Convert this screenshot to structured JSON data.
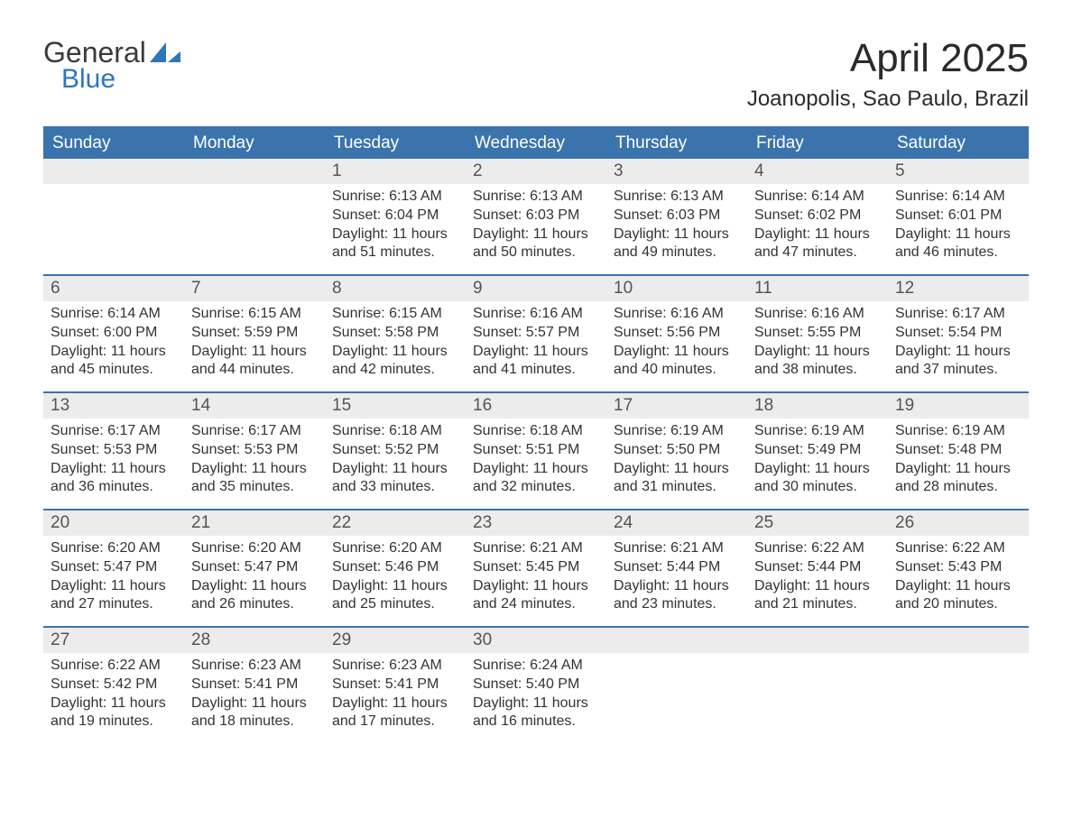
{
  "logo": {
    "text_general": "General",
    "text_blue": "Blue",
    "blue_color": "#2f76bb",
    "gray_color": "#3a3a3a"
  },
  "header": {
    "title": "April 2025",
    "location": "Joanopolis, Sao Paulo, Brazil"
  },
  "colors": {
    "header_bg": "#3b74ad",
    "row_divider": "#3b74ad",
    "daynum_bg": "#ececec",
    "text": "#333333"
  },
  "weekdays": [
    "Sunday",
    "Monday",
    "Tuesday",
    "Wednesday",
    "Thursday",
    "Friday",
    "Saturday"
  ],
  "weeks": [
    [
      {
        "num": "",
        "sunrise": "",
        "sunset": "",
        "daylight": ""
      },
      {
        "num": "",
        "sunrise": "",
        "sunset": "",
        "daylight": ""
      },
      {
        "num": "1",
        "sunrise": "Sunrise: 6:13 AM",
        "sunset": "Sunset: 6:04 PM",
        "daylight": "Daylight: 11 hours and 51 minutes."
      },
      {
        "num": "2",
        "sunrise": "Sunrise: 6:13 AM",
        "sunset": "Sunset: 6:03 PM",
        "daylight": "Daylight: 11 hours and 50 minutes."
      },
      {
        "num": "3",
        "sunrise": "Sunrise: 6:13 AM",
        "sunset": "Sunset: 6:03 PM",
        "daylight": "Daylight: 11 hours and 49 minutes."
      },
      {
        "num": "4",
        "sunrise": "Sunrise: 6:14 AM",
        "sunset": "Sunset: 6:02 PM",
        "daylight": "Daylight: 11 hours and 47 minutes."
      },
      {
        "num": "5",
        "sunrise": "Sunrise: 6:14 AM",
        "sunset": "Sunset: 6:01 PM",
        "daylight": "Daylight: 11 hours and 46 minutes."
      }
    ],
    [
      {
        "num": "6",
        "sunrise": "Sunrise: 6:14 AM",
        "sunset": "Sunset: 6:00 PM",
        "daylight": "Daylight: 11 hours and 45 minutes."
      },
      {
        "num": "7",
        "sunrise": "Sunrise: 6:15 AM",
        "sunset": "Sunset: 5:59 PM",
        "daylight": "Daylight: 11 hours and 44 minutes."
      },
      {
        "num": "8",
        "sunrise": "Sunrise: 6:15 AM",
        "sunset": "Sunset: 5:58 PM",
        "daylight": "Daylight: 11 hours and 42 minutes."
      },
      {
        "num": "9",
        "sunrise": "Sunrise: 6:16 AM",
        "sunset": "Sunset: 5:57 PM",
        "daylight": "Daylight: 11 hours and 41 minutes."
      },
      {
        "num": "10",
        "sunrise": "Sunrise: 6:16 AM",
        "sunset": "Sunset: 5:56 PM",
        "daylight": "Daylight: 11 hours and 40 minutes."
      },
      {
        "num": "11",
        "sunrise": "Sunrise: 6:16 AM",
        "sunset": "Sunset: 5:55 PM",
        "daylight": "Daylight: 11 hours and 38 minutes."
      },
      {
        "num": "12",
        "sunrise": "Sunrise: 6:17 AM",
        "sunset": "Sunset: 5:54 PM",
        "daylight": "Daylight: 11 hours and 37 minutes."
      }
    ],
    [
      {
        "num": "13",
        "sunrise": "Sunrise: 6:17 AM",
        "sunset": "Sunset: 5:53 PM",
        "daylight": "Daylight: 11 hours and 36 minutes."
      },
      {
        "num": "14",
        "sunrise": "Sunrise: 6:17 AM",
        "sunset": "Sunset: 5:53 PM",
        "daylight": "Daylight: 11 hours and 35 minutes."
      },
      {
        "num": "15",
        "sunrise": "Sunrise: 6:18 AM",
        "sunset": "Sunset: 5:52 PM",
        "daylight": "Daylight: 11 hours and 33 minutes."
      },
      {
        "num": "16",
        "sunrise": "Sunrise: 6:18 AM",
        "sunset": "Sunset: 5:51 PM",
        "daylight": "Daylight: 11 hours and 32 minutes."
      },
      {
        "num": "17",
        "sunrise": "Sunrise: 6:19 AM",
        "sunset": "Sunset: 5:50 PM",
        "daylight": "Daylight: 11 hours and 31 minutes."
      },
      {
        "num": "18",
        "sunrise": "Sunrise: 6:19 AM",
        "sunset": "Sunset: 5:49 PM",
        "daylight": "Daylight: 11 hours and 30 minutes."
      },
      {
        "num": "19",
        "sunrise": "Sunrise: 6:19 AM",
        "sunset": "Sunset: 5:48 PM",
        "daylight": "Daylight: 11 hours and 28 minutes."
      }
    ],
    [
      {
        "num": "20",
        "sunrise": "Sunrise: 6:20 AM",
        "sunset": "Sunset: 5:47 PM",
        "daylight": "Daylight: 11 hours and 27 minutes."
      },
      {
        "num": "21",
        "sunrise": "Sunrise: 6:20 AM",
        "sunset": "Sunset: 5:47 PM",
        "daylight": "Daylight: 11 hours and 26 minutes."
      },
      {
        "num": "22",
        "sunrise": "Sunrise: 6:20 AM",
        "sunset": "Sunset: 5:46 PM",
        "daylight": "Daylight: 11 hours and 25 minutes."
      },
      {
        "num": "23",
        "sunrise": "Sunrise: 6:21 AM",
        "sunset": "Sunset: 5:45 PM",
        "daylight": "Daylight: 11 hours and 24 minutes."
      },
      {
        "num": "24",
        "sunrise": "Sunrise: 6:21 AM",
        "sunset": "Sunset: 5:44 PM",
        "daylight": "Daylight: 11 hours and 23 minutes."
      },
      {
        "num": "25",
        "sunrise": "Sunrise: 6:22 AM",
        "sunset": "Sunset: 5:44 PM",
        "daylight": "Daylight: 11 hours and 21 minutes."
      },
      {
        "num": "26",
        "sunrise": "Sunrise: 6:22 AM",
        "sunset": "Sunset: 5:43 PM",
        "daylight": "Daylight: 11 hours and 20 minutes."
      }
    ],
    [
      {
        "num": "27",
        "sunrise": "Sunrise: 6:22 AM",
        "sunset": "Sunset: 5:42 PM",
        "daylight": "Daylight: 11 hours and 19 minutes."
      },
      {
        "num": "28",
        "sunrise": "Sunrise: 6:23 AM",
        "sunset": "Sunset: 5:41 PM",
        "daylight": "Daylight: 11 hours and 18 minutes."
      },
      {
        "num": "29",
        "sunrise": "Sunrise: 6:23 AM",
        "sunset": "Sunset: 5:41 PM",
        "daylight": "Daylight: 11 hours and 17 minutes."
      },
      {
        "num": "30",
        "sunrise": "Sunrise: 6:24 AM",
        "sunset": "Sunset: 5:40 PM",
        "daylight": "Daylight: 11 hours and 16 minutes."
      },
      {
        "num": "",
        "sunrise": "",
        "sunset": "",
        "daylight": ""
      },
      {
        "num": "",
        "sunrise": "",
        "sunset": "",
        "daylight": ""
      },
      {
        "num": "",
        "sunrise": "",
        "sunset": "",
        "daylight": ""
      }
    ]
  ]
}
